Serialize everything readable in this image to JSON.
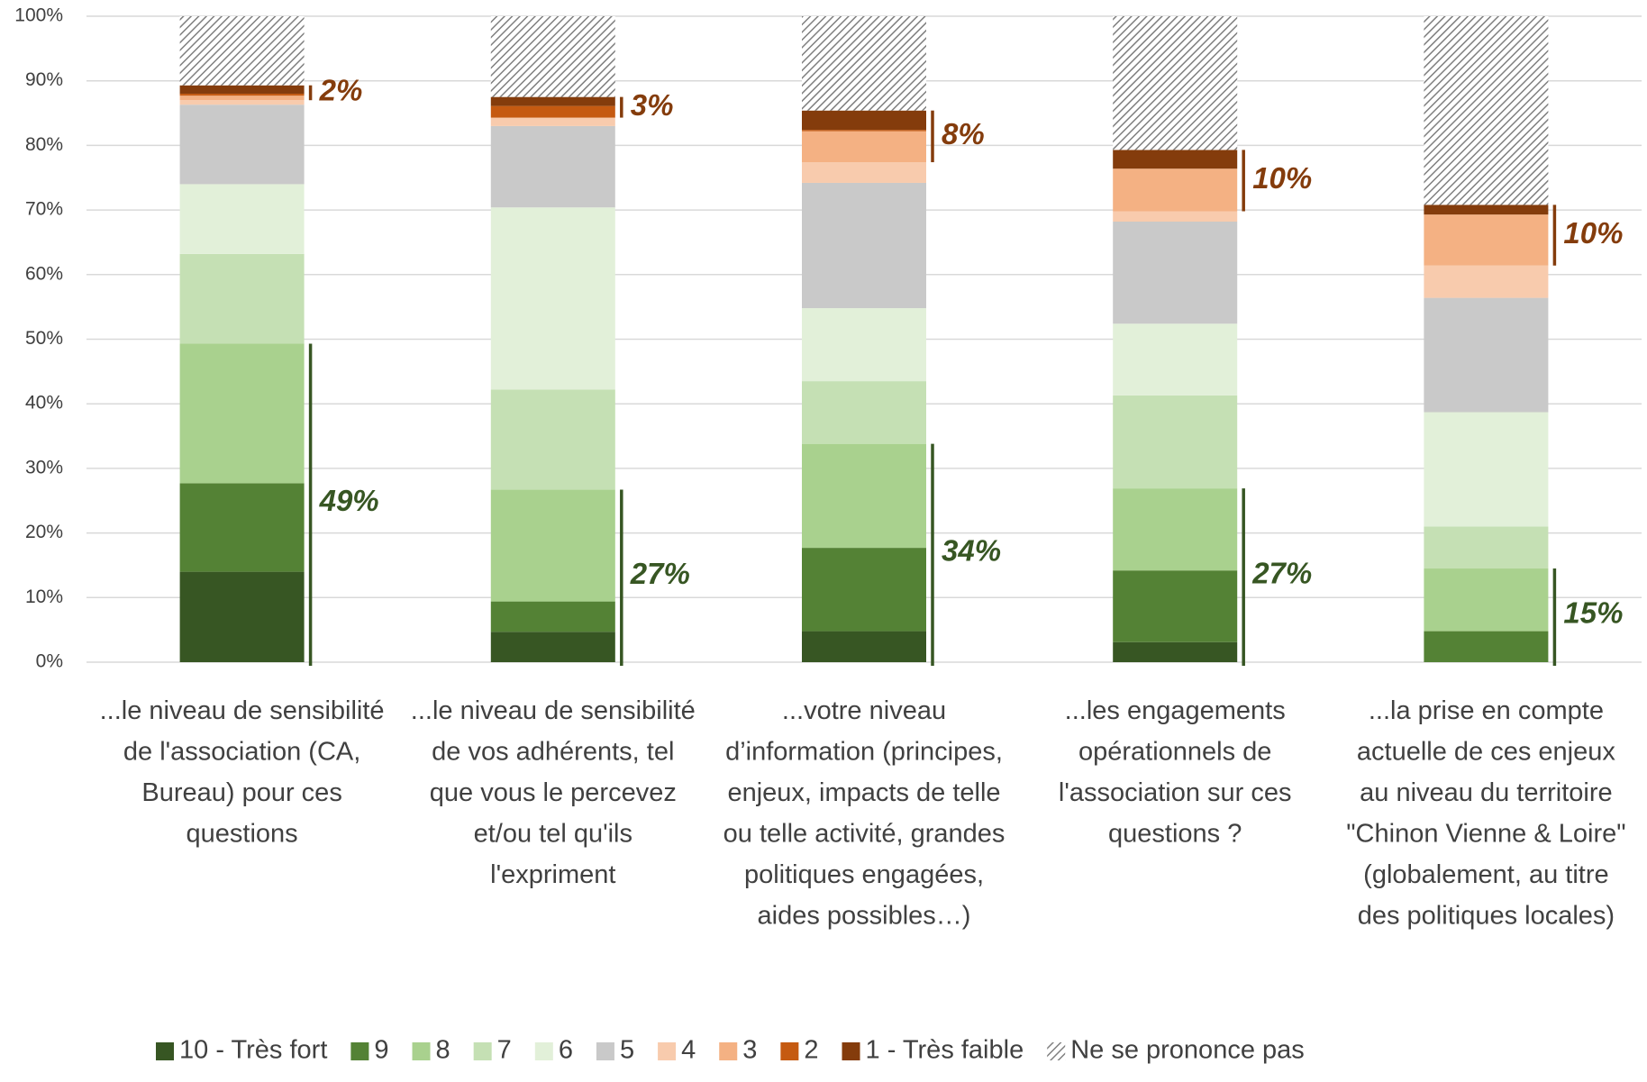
{
  "chart_data": {
    "type": "stacked_bar",
    "categories": [
      "...le niveau de sensibilité de l'association (CA, Bureau) pour ces questions",
      "...le niveau de sensibilité de vos adhérents, tel que vous le percevez et/ou tel qu'ils l'expriment",
      "...votre niveau d’information (principes, enjeux,  impacts de telle ou telle activité, grandes politiques engagées, aides possibles…)",
      "...les engagements opérationnels de l'association sur ces questions ?",
      "...la prise en compte actuelle de ces enjeux au niveau du territoire \"Chinon Vienne & Loire\" (globalement, au titre des politiques locales)"
    ],
    "series": [
      {
        "name": "10 - Très fort",
        "color": "#375623",
        "values": [
          14,
          4.7,
          4.8,
          3.1,
          0
        ]
      },
      {
        "name": "9",
        "color": "#548235",
        "values": [
          13.7,
          4.7,
          12.9,
          11.1,
          4.8
        ]
      },
      {
        "name": "8",
        "color": "#a9d18e",
        "values": [
          21.6,
          17.3,
          16.1,
          12.7,
          9.7
        ]
      },
      {
        "name": "7",
        "color": "#c5e0b4",
        "values": [
          13.9,
          15.5,
          9.7,
          14.4,
          6.5
        ]
      },
      {
        "name": "6",
        "color": "#e2f0d9",
        "values": [
          10.8,
          28.2,
          11.3,
          11.1,
          17.7
        ]
      },
      {
        "name": "5",
        "color": "#c9c9c9",
        "values": [
          12.3,
          12.6,
          19.4,
          15.8,
          17.7
        ]
      },
      {
        "name": "4",
        "color": "#f8cbad",
        "values": [
          0.7,
          1.3,
          3.2,
          1.6,
          5
        ]
      },
      {
        "name": "3",
        "color": "#f4b183",
        "values": [
          0.7,
          0,
          4.8,
          6.6,
          7.9
        ]
      },
      {
        "name": "2",
        "color": "#c55a11",
        "values": [
          0.3,
          1.8,
          0.2,
          0,
          0
        ]
      },
      {
        "name": "1 - Très faible",
        "color": "#843c0c",
        "values": [
          1.3,
          1.4,
          3,
          2.9,
          1.5
        ]
      },
      {
        "name": "Ne se prononce pas",
        "color": "#7f7f7f",
        "pattern": "hatch",
        "values": [
          10.7,
          12.5,
          14.6,
          20.7,
          29.2
        ]
      }
    ],
    "high_labels": [
      "49%",
      "27%",
      "34%",
      "27%",
      "15%"
    ],
    "low_labels": [
      "2%",
      "3%",
      "8%",
      "10%",
      "10%"
    ],
    "ylim": [
      0,
      100
    ],
    "yticks": [
      {
        "value": 0,
        "label": "0%"
      },
      {
        "value": 10,
        "label": "10%"
      },
      {
        "value": 20,
        "label": "20%"
      },
      {
        "value": 30,
        "label": "30%"
      },
      {
        "value": 40,
        "label": "40%"
      },
      {
        "value": 50,
        "label": "50%"
      },
      {
        "value": 60,
        "label": "60%"
      },
      {
        "value": 70,
        "label": "70%"
      },
      {
        "value": 80,
        "label": "80%"
      },
      {
        "value": 90,
        "label": "90%"
      },
      {
        "value": 100,
        "label": "100%"
      }
    ],
    "grid": true,
    "legend": "bottom"
  }
}
